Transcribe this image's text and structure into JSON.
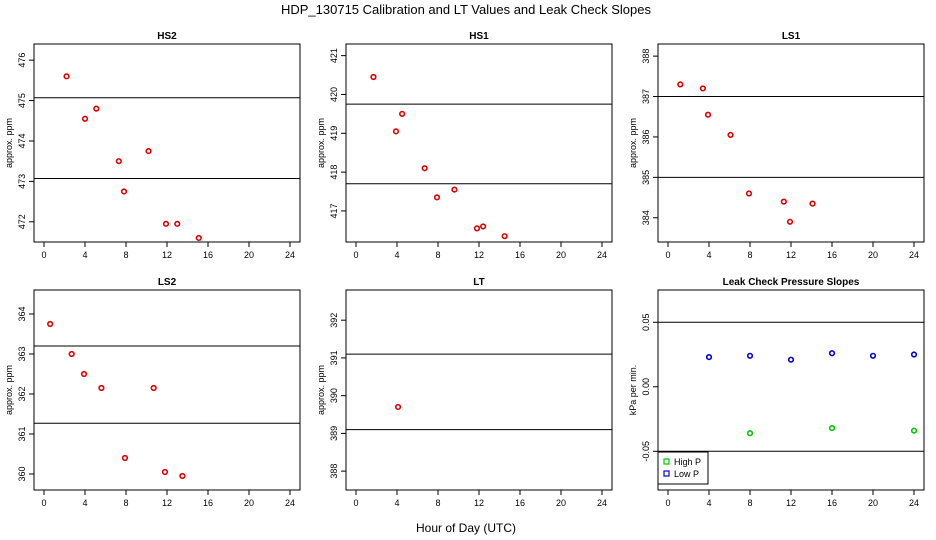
{
  "figure": {
    "title": "HDP_130715  Calibration and LT Values and Leak Check Slopes",
    "xlabel": "Hour of Day (UTC)"
  },
  "chart_data": [
    {
      "type": "scatter",
      "title": "HS2",
      "ylabel": "approx. ppm",
      "xlim": [
        0,
        24
      ],
      "ylim": [
        471.5,
        476.4
      ],
      "xticks": [
        0,
        4,
        8,
        12,
        16,
        20,
        24
      ],
      "yticks": [
        472,
        473,
        474,
        475,
        476
      ],
      "hlines": [
        475.07,
        473.07
      ],
      "series": [
        {
          "color": "#e00000",
          "x": [
            2.2,
            4.0,
            5.1,
            7.3,
            7.8,
            10.2,
            11.9,
            13.0,
            15.1
          ],
          "y": [
            475.6,
            474.55,
            474.8,
            473.5,
            472.75,
            473.75,
            471.95,
            471.95,
            471.6
          ]
        }
      ]
    },
    {
      "type": "scatter",
      "title": "HS1",
      "ylabel": "approx. ppm",
      "xlim": [
        0,
        24
      ],
      "ylim": [
        416.2,
        421.3
      ],
      "xticks": [
        0,
        4,
        8,
        12,
        16,
        20,
        24
      ],
      "yticks": [
        417,
        418,
        419,
        420,
        421
      ],
      "hlines": [
        419.75,
        417.7
      ],
      "series": [
        {
          "color": "#e00000",
          "x": [
            1.7,
            3.9,
            4.5,
            6.7,
            7.9,
            9.6,
            11.8,
            12.4,
            14.5
          ],
          "y": [
            420.45,
            419.05,
            419.5,
            418.1,
            417.35,
            417.55,
            416.55,
            416.6,
            416.35
          ]
        }
      ]
    },
    {
      "type": "scatter",
      "title": "LS1",
      "ylabel": "approx. ppm",
      "xlim": [
        0,
        24
      ],
      "ylim": [
        383.4,
        388.3
      ],
      "xticks": [
        0,
        4,
        8,
        12,
        16,
        20,
        24
      ],
      "yticks": [
        384,
        385,
        386,
        387,
        388
      ],
      "hlines": [
        387.0,
        385.0
      ],
      "series": [
        {
          "color": "#e00000",
          "x": [
            1.2,
            3.4,
            3.9,
            6.1,
            7.9,
            11.3,
            11.9,
            14.1
          ],
          "y": [
            387.3,
            387.2,
            386.55,
            386.05,
            384.6,
            384.4,
            383.9,
            384.35
          ]
        }
      ]
    },
    {
      "type": "scatter",
      "title": "LS2",
      "ylabel": "approx. ppm",
      "xlim": [
        0,
        24
      ],
      "ylim": [
        359.6,
        364.6
      ],
      "xticks": [
        0,
        4,
        8,
        12,
        16,
        20,
        24
      ],
      "yticks": [
        360,
        361,
        362,
        363,
        364
      ],
      "hlines": [
        363.2,
        361.27
      ],
      "series": [
        {
          "color": "#e00000",
          "x": [
            0.6,
            2.7,
            3.9,
            5.6,
            7.9,
            10.7,
            11.8,
            13.5
          ],
          "y": [
            363.75,
            363.0,
            362.5,
            362.15,
            360.4,
            362.15,
            360.05,
            359.95
          ]
        }
      ]
    },
    {
      "type": "scatter",
      "title": "LT",
      "ylabel": "approx. ppm",
      "xlim": [
        0,
        24
      ],
      "ylim": [
        387.5,
        392.8
      ],
      "xticks": [
        0,
        4,
        8,
        12,
        16,
        20,
        24
      ],
      "yticks": [
        388,
        389,
        390,
        391,
        392
      ],
      "hlines": [
        391.1,
        389.1
      ],
      "series": [
        {
          "color": "#e00000",
          "x": [
            4.1
          ],
          "y": [
            389.7
          ]
        }
      ]
    },
    {
      "type": "scatter",
      "title": "Leak Check Pressure Slopes",
      "ylabel": "kPa per min.",
      "xlim": [
        0,
        24
      ],
      "ylim": [
        -0.08,
        0.075
      ],
      "xticks": [
        0,
        4,
        8,
        12,
        16,
        20,
        24
      ],
      "yticks": [
        -0.05,
        0.0,
        0.05
      ],
      "ytick_labels": [
        "-0.05",
        "0.00",
        "0.05"
      ],
      "hlines": [
        0.05,
        -0.05
      ],
      "legend": {
        "position": "bottom-left"
      },
      "series": [
        {
          "name": "High P",
          "color": "#00c800",
          "x": [
            8,
            16,
            24
          ],
          "y": [
            -0.036,
            -0.032,
            -0.034
          ]
        },
        {
          "name": "Low P",
          "color": "#0000e0",
          "x": [
            4,
            8,
            12,
            16,
            20,
            24
          ],
          "y": [
            0.023,
            0.024,
            0.021,
            0.026,
            0.024,
            0.025
          ]
        }
      ]
    }
  ]
}
